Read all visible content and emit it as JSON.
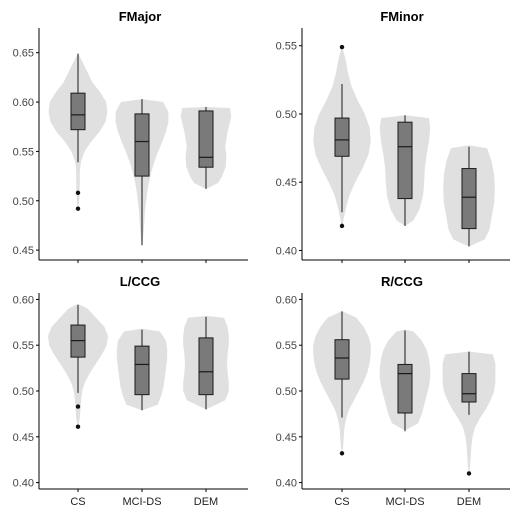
{
  "chart_data": [
    {
      "type": "violin-box",
      "title": "FMajor",
      "categories": [
        "CS",
        "MCI-DS",
        "DEM"
      ],
      "ylim": [
        0.44,
        0.675
      ],
      "yticks": [
        0.45,
        0.5,
        0.55,
        0.6,
        0.65
      ],
      "ytick_labels": [
        "0.45",
        "0.50",
        "0.55",
        "0.60",
        "0.65"
      ],
      "groups": [
        {
          "name": "CS",
          "min": 0.539,
          "q1": 0.572,
          "median": 0.587,
          "q3": 0.609,
          "max": 0.649,
          "outliers": [
            0.508,
            0.492
          ],
          "density": [
            [
              0.649,
              0.004
            ],
            [
              0.64,
              0.08
            ],
            [
              0.63,
              0.16
            ],
            [
              0.62,
              0.24
            ],
            [
              0.61,
              0.37
            ],
            [
              0.6,
              0.47
            ],
            [
              0.59,
              0.49
            ],
            [
              0.58,
              0.46
            ],
            [
              0.57,
              0.36
            ],
            [
              0.56,
              0.22
            ],
            [
              0.55,
              0.11
            ],
            [
              0.54,
              0.05
            ],
            [
              0.53,
              0.03
            ],
            [
              0.52,
              0.03
            ],
            [
              0.51,
              0.025
            ],
            [
              0.5,
              0.02
            ],
            [
              0.492,
              0.005
            ]
          ]
        },
        {
          "name": "MCI-DS",
          "min": 0.455,
          "q1": 0.525,
          "median": 0.56,
          "q3": 0.588,
          "max": 0.603,
          "outliers": [],
          "density": [
            [
              0.603,
              0.005
            ],
            [
              0.6,
              0.35
            ],
            [
              0.59,
              0.44
            ],
            [
              0.58,
              0.44
            ],
            [
              0.57,
              0.4
            ],
            [
              0.56,
              0.34
            ],
            [
              0.55,
              0.27
            ],
            [
              0.54,
              0.21
            ],
            [
              0.53,
              0.16
            ],
            [
              0.52,
              0.12
            ],
            [
              0.51,
              0.09
            ],
            [
              0.5,
              0.07
            ],
            [
              0.49,
              0.05
            ],
            [
              0.48,
              0.04
            ],
            [
              0.47,
              0.03
            ],
            [
              0.455,
              0.005
            ]
          ]
        },
        {
          "name": "DEM",
          "min": 0.512,
          "q1": 0.534,
          "median": 0.544,
          "q3": 0.591,
          "max": 0.595,
          "outliers": [],
          "density": [
            [
              0.595,
              0.005
            ],
            [
              0.594,
              0.4
            ],
            [
              0.585,
              0.42
            ],
            [
              0.57,
              0.36
            ],
            [
              0.555,
              0.32
            ],
            [
              0.545,
              0.34
            ],
            [
              0.535,
              0.33
            ],
            [
              0.525,
              0.27
            ],
            [
              0.518,
              0.2
            ],
            [
              0.512,
              0.005
            ]
          ]
        }
      ]
    },
    {
      "type": "violin-box",
      "title": "FMinor",
      "categories": [
        "CS",
        "MCI-DS",
        "DEM"
      ],
      "ylim": [
        0.393,
        0.563
      ],
      "yticks": [
        0.4,
        0.45,
        0.5,
        0.55
      ],
      "ytick_labels": [
        "0.40",
        "0.45",
        "0.50",
        "0.55"
      ],
      "groups": [
        {
          "name": "CS",
          "min": 0.428,
          "q1": 0.469,
          "median": 0.481,
          "q3": 0.497,
          "max": 0.522,
          "outliers": [
            0.549,
            0.418
          ],
          "density": [
            [
              0.549,
              0.004
            ],
            [
              0.54,
              0.06
            ],
            [
              0.53,
              0.1
            ],
            [
              0.52,
              0.16
            ],
            [
              0.51,
              0.26
            ],
            [
              0.5,
              0.38
            ],
            [
              0.49,
              0.46
            ],
            [
              0.48,
              0.48
            ],
            [
              0.47,
              0.44
            ],
            [
              0.46,
              0.34
            ],
            [
              0.45,
              0.22
            ],
            [
              0.44,
              0.12
            ],
            [
              0.43,
              0.06
            ],
            [
              0.418,
              0.004
            ]
          ]
        },
        {
          "name": "MCI-DS",
          "min": 0.418,
          "q1": 0.438,
          "median": 0.476,
          "q3": 0.494,
          "max": 0.499,
          "outliers": [],
          "density": [
            [
              0.499,
              0.005
            ],
            [
              0.497,
              0.4
            ],
            [
              0.49,
              0.42
            ],
            [
              0.48,
              0.4
            ],
            [
              0.47,
              0.36
            ],
            [
              0.46,
              0.33
            ],
            [
              0.45,
              0.32
            ],
            [
              0.44,
              0.3
            ],
            [
              0.43,
              0.24
            ],
            [
              0.422,
              0.14
            ],
            [
              0.418,
              0.005
            ]
          ]
        },
        {
          "name": "DEM",
          "min": 0.403,
          "q1": 0.416,
          "median": 0.439,
          "q3": 0.46,
          "max": 0.476,
          "outliers": [],
          "density": [
            [
              0.477,
              0.005
            ],
            [
              0.475,
              0.3
            ],
            [
              0.465,
              0.38
            ],
            [
              0.455,
              0.42
            ],
            [
              0.445,
              0.43
            ],
            [
              0.435,
              0.42
            ],
            [
              0.425,
              0.38
            ],
            [
              0.415,
              0.34
            ],
            [
              0.408,
              0.26
            ],
            [
              0.403,
              0.005
            ]
          ]
        }
      ]
    },
    {
      "type": "violin-box",
      "title": "L/CCG",
      "categories": [
        "CS",
        "MCI-DS",
        "DEM"
      ],
      "ylim": [
        0.393,
        0.607
      ],
      "yticks": [
        0.4,
        0.45,
        0.5,
        0.55,
        0.6
      ],
      "ytick_labels": [
        "0.40",
        "0.45",
        "0.50",
        "0.55",
        "0.60"
      ],
      "groups": [
        {
          "name": "CS",
          "min": 0.498,
          "q1": 0.537,
          "median": 0.555,
          "q3": 0.572,
          "max": 0.594,
          "outliers": [
            0.483,
            0.461
          ],
          "density": [
            [
              0.595,
              0.005
            ],
            [
              0.59,
              0.16
            ],
            [
              0.58,
              0.3
            ],
            [
              0.57,
              0.44
            ],
            [
              0.56,
              0.5
            ],
            [
              0.55,
              0.48
            ],
            [
              0.54,
              0.4
            ],
            [
              0.53,
              0.3
            ],
            [
              0.52,
              0.2
            ],
            [
              0.51,
              0.12
            ],
            [
              0.5,
              0.07
            ],
            [
              0.49,
              0.05
            ],
            [
              0.48,
              0.04
            ],
            [
              0.47,
              0.03
            ],
            [
              0.461,
              0.004
            ]
          ]
        },
        {
          "name": "MCI-DS",
          "min": 0.479,
          "q1": 0.496,
          "median": 0.529,
          "q3": 0.549,
          "max": 0.567,
          "outliers": [],
          "density": [
            [
              0.568,
              0.005
            ],
            [
              0.565,
              0.3
            ],
            [
              0.555,
              0.4
            ],
            [
              0.545,
              0.42
            ],
            [
              0.535,
              0.42
            ],
            [
              0.525,
              0.4
            ],
            [
              0.515,
              0.38
            ],
            [
              0.505,
              0.36
            ],
            [
              0.495,
              0.32
            ],
            [
              0.485,
              0.26
            ],
            [
              0.479,
              0.005
            ]
          ]
        },
        {
          "name": "DEM",
          "min": 0.48,
          "q1": 0.496,
          "median": 0.521,
          "q3": 0.558,
          "max": 0.581,
          "outliers": [],
          "density": [
            [
              0.582,
              0.005
            ],
            [
              0.58,
              0.3
            ],
            [
              0.57,
              0.36
            ],
            [
              0.56,
              0.38
            ],
            [
              0.55,
              0.38
            ],
            [
              0.54,
              0.36
            ],
            [
              0.53,
              0.35
            ],
            [
              0.52,
              0.36
            ],
            [
              0.51,
              0.38
            ],
            [
              0.5,
              0.38
            ],
            [
              0.49,
              0.32
            ],
            [
              0.48,
              0.005
            ]
          ]
        }
      ]
    },
    {
      "type": "violin-box",
      "title": "R/CCG",
      "categories": [
        "CS",
        "MCI-DS",
        "DEM"
      ],
      "ylim": [
        0.393,
        0.607
      ],
      "yticks": [
        0.4,
        0.45,
        0.5,
        0.55,
        0.6
      ],
      "ytick_labels": [
        "0.40",
        "0.45",
        "0.50",
        "0.55",
        "0.60"
      ],
      "groups": [
        {
          "name": "CS",
          "min": 0.471,
          "q1": 0.513,
          "median": 0.536,
          "q3": 0.556,
          "max": 0.587,
          "outliers": [
            0.432
          ],
          "density": [
            [
              0.587,
              0.005
            ],
            [
              0.58,
              0.24
            ],
            [
              0.57,
              0.36
            ],
            [
              0.56,
              0.44
            ],
            [
              0.55,
              0.48
            ],
            [
              0.54,
              0.48
            ],
            [
              0.53,
              0.46
            ],
            [
              0.52,
              0.42
            ],
            [
              0.51,
              0.36
            ],
            [
              0.5,
              0.28
            ],
            [
              0.49,
              0.2
            ],
            [
              0.48,
              0.12
            ],
            [
              0.47,
              0.07
            ],
            [
              0.46,
              0.04
            ],
            [
              0.45,
              0.03
            ],
            [
              0.44,
              0.02
            ],
            [
              0.432,
              0.004
            ]
          ]
        },
        {
          "name": "MCI-DS",
          "min": 0.456,
          "q1": 0.476,
          "median": 0.519,
          "q3": 0.529,
          "max": 0.566,
          "outliers": [],
          "density": [
            [
              0.567,
              0.005
            ],
            [
              0.565,
              0.14
            ],
            [
              0.555,
              0.28
            ],
            [
              0.545,
              0.36
            ],
            [
              0.535,
              0.4
            ],
            [
              0.525,
              0.42
            ],
            [
              0.515,
              0.42
            ],
            [
              0.505,
              0.4
            ],
            [
              0.495,
              0.36
            ],
            [
              0.485,
              0.32
            ],
            [
              0.475,
              0.28
            ],
            [
              0.465,
              0.22
            ],
            [
              0.457,
              0.005
            ]
          ]
        },
        {
          "name": "DEM",
          "min": 0.474,
          "q1": 0.488,
          "median": 0.497,
          "q3": 0.519,
          "max": 0.543,
          "outliers": [
            0.41
          ],
          "density": [
            [
              0.543,
              0.005
            ],
            [
              0.54,
              0.4
            ],
            [
              0.53,
              0.44
            ],
            [
              0.52,
              0.44
            ],
            [
              0.51,
              0.44
            ],
            [
              0.5,
              0.42
            ],
            [
              0.49,
              0.36
            ],
            [
              0.48,
              0.28
            ],
            [
              0.47,
              0.18
            ],
            [
              0.46,
              0.1
            ],
            [
              0.45,
              0.06
            ],
            [
              0.44,
              0.04
            ],
            [
              0.43,
              0.03
            ],
            [
              0.42,
              0.02
            ],
            [
              0.41,
              0.005
            ]
          ]
        }
      ]
    }
  ],
  "colors": {
    "violin_fill": "#e0e0e0",
    "box_fill": "#7a7a7a",
    "box_stroke": "#1a1a1a",
    "axis": "#000000",
    "point": "#111111"
  }
}
